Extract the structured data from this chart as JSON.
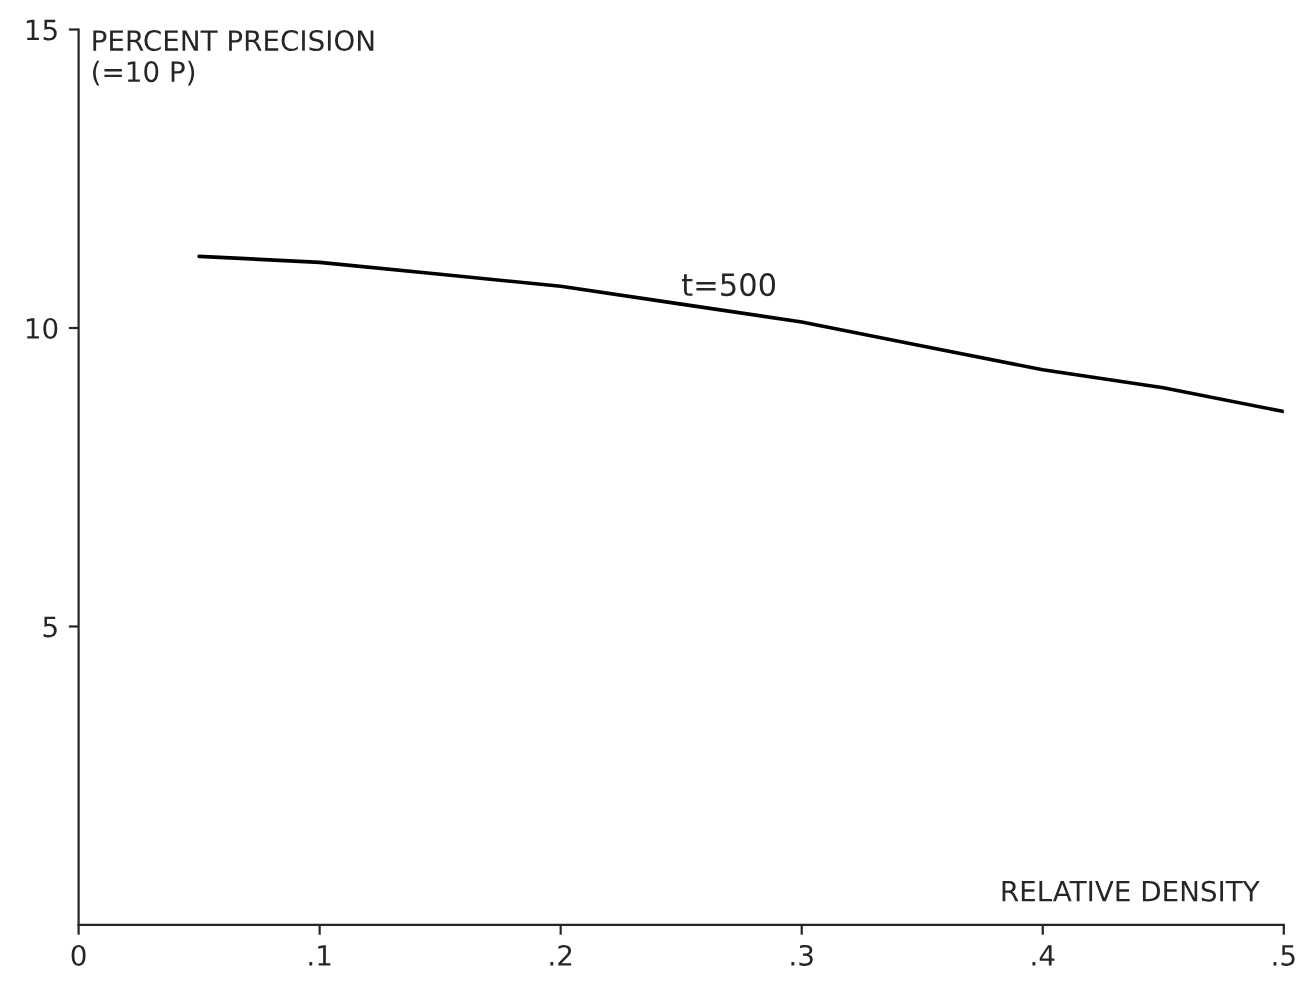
{
  "chart_data": {
    "type": "line",
    "xlabel": "RELATIVE DENSITY",
    "ylabel": "PERCENT PRECISION\n(=10 P)",
    "x": [
      0.05,
      0.1,
      0.15,
      0.2,
      0.25,
      0.3,
      0.35,
      0.4,
      0.45,
      0.5
    ],
    "series": [
      {
        "color": "#000000",
        "values": [
          11.2,
          11.1,
          10.9,
          10.7,
          10.4,
          10.1,
          9.7,
          9.3,
          9.0,
          8.6
        ]
      }
    ],
    "annotations": [
      {
        "text": "t=500",
        "x": 0.25,
        "y": 10.4
      }
    ],
    "xlim": [
      0,
      0.5
    ],
    "ylim": [
      0,
      15
    ],
    "xticks": [
      {
        "value": 0,
        "label": "0"
      },
      {
        "value": 0.1,
        "label": ".1"
      },
      {
        "value": 0.2,
        "label": ".2"
      },
      {
        "value": 0.3,
        "label": ".3"
      },
      {
        "value": 0.4,
        "label": ".4"
      },
      {
        "value": 0.5,
        "label": ".5"
      }
    ],
    "yticks": [
      5,
      10,
      15
    ],
    "grid": false,
    "legend": false,
    "marker": "none",
    "line_style": "solid"
  }
}
